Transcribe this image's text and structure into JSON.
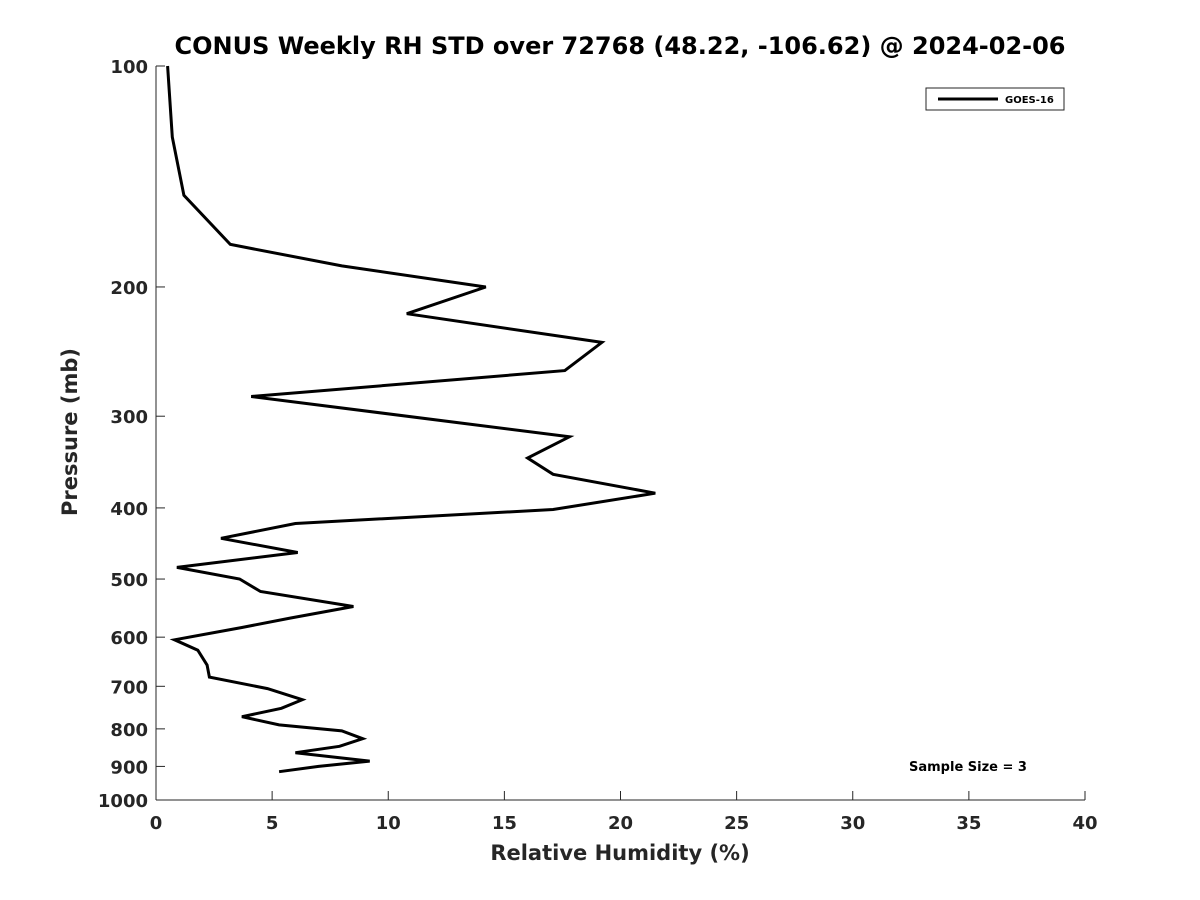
{
  "chart_data": {
    "type": "line",
    "title": "CONUS Weekly RH STD over 72768 (48.22, -106.62) @ 2024-02-06",
    "xlabel": "Relative Humidity (%)",
    "ylabel": "Pressure (mb)",
    "xlim": [
      0,
      40
    ],
    "ylim": [
      100,
      1000
    ],
    "y_scale": "log",
    "y_reversed": true,
    "x_ticks": [
      "0",
      "5",
      "10",
      "15",
      "20",
      "25",
      "30",
      "35",
      "40"
    ],
    "y_ticks": [
      "100",
      "200",
      "300",
      "400",
      "500",
      "600",
      "700",
      "800",
      "900",
      "1000"
    ],
    "grid": false,
    "legend_position": "top-right",
    "series": [
      {
        "name": "GOES-16",
        "color": "#000000",
        "points": [
          [
            0.5,
            100
          ],
          [
            0.7,
            125
          ],
          [
            1.2,
            150
          ],
          [
            3.2,
            175
          ],
          [
            8.0,
            187.2
          ],
          [
            14.2,
            200
          ],
          [
            10.8,
            217.5
          ],
          [
            19.2,
            238
          ],
          [
            17.6,
            260
          ],
          [
            4.1,
            282
          ],
          [
            17.8,
            320
          ],
          [
            16.0,
            342
          ],
          [
            17.1,
            360
          ],
          [
            21.5,
            382
          ],
          [
            17.1,
            402
          ],
          [
            6.0,
            420
          ],
          [
            2.8,
            440
          ],
          [
            6.1,
            460
          ],
          [
            0.9,
            482
          ],
          [
            3.6,
            500
          ],
          [
            4.5,
            520
          ],
          [
            8.5,
            545
          ],
          [
            5.8,
            565
          ],
          [
            3.7,
            582
          ],
          [
            0.8,
            605
          ],
          [
            1.8,
            625
          ],
          [
            2.2,
            655
          ],
          [
            2.3,
            680
          ],
          [
            4.8,
            705
          ],
          [
            6.3,
            730
          ],
          [
            5.4,
            750
          ],
          [
            3.7,
            770
          ],
          [
            5.3,
            790
          ],
          [
            8.0,
            805
          ],
          [
            8.9,
            825
          ],
          [
            7.9,
            845
          ],
          [
            6.0,
            862
          ],
          [
            9.2,
            885
          ],
          [
            7.0,
            900
          ],
          [
            5.3,
            915
          ]
        ]
      }
    ],
    "annotations": [
      "Sample Size = 3"
    ]
  }
}
